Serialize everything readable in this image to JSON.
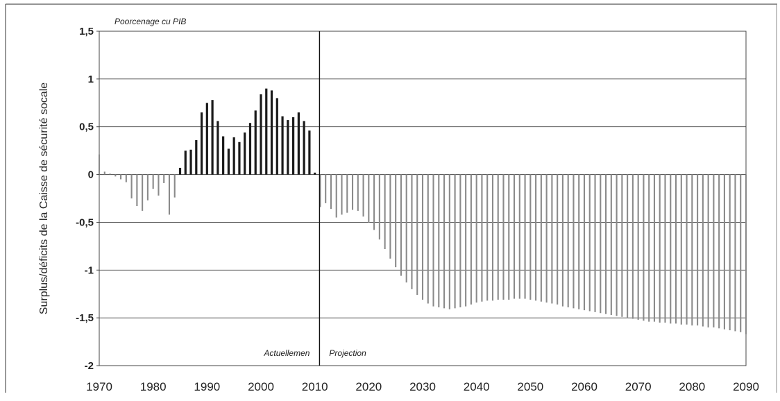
{
  "chart_data": {
    "type": "bar",
    "title": "",
    "subtitle": "Poorcenage cu PIB",
    "xlabel": "",
    "ylabel": "Surplus/déficits de la Caisse de sécurité socale",
    "ylim": [
      -2,
      1.5
    ],
    "yticks": [
      "1,5",
      "1",
      "0,5",
      "0",
      "-0,5",
      "-1",
      "-1,5",
      "-2"
    ],
    "ytick_values": [
      1.5,
      1,
      0.5,
      0,
      -0.5,
      -1,
      -1.5,
      -2
    ],
    "xticks": [
      "1970",
      "1980",
      "1990",
      "2000",
      "2010",
      "2020",
      "2030",
      "2040",
      "2050",
      "2060",
      "2070",
      "2080",
      "2090"
    ],
    "xtick_values": [
      1970,
      1980,
      1990,
      2000,
      2010,
      2020,
      2030,
      2040,
      2050,
      2060,
      2070,
      2080,
      2090
    ],
    "xlim": [
      1970,
      2090
    ],
    "grid": "horizontal",
    "divider_year": 2011,
    "annotations": {
      "left": "Actuellemen",
      "right": "Projection"
    },
    "colors": {
      "historical_positive": "#1a1a1a",
      "other_bars": "#8a8a8a",
      "grid": "#444444"
    },
    "historical_positive_range": [
      1984,
      2010
    ],
    "series": [
      {
        "x": [
          1970,
          1971,
          1972,
          1973,
          1974,
          1975,
          1976,
          1977,
          1978,
          1979,
          1980,
          1981,
          1982,
          1983,
          1984,
          1985,
          1986,
          1987,
          1988,
          1989,
          1990,
          1991,
          1992,
          1993,
          1994,
          1995,
          1996,
          1997,
          1998,
          1999,
          2000,
          2001,
          2002,
          2003,
          2004,
          2005,
          2006,
          2007,
          2008,
          2009,
          2010,
          2011,
          2012,
          2013,
          2014,
          2015,
          2016,
          2017,
          2018,
          2019,
          2020,
          2021,
          2022,
          2023,
          2024,
          2025,
          2026,
          2027,
          2028,
          2029,
          2030,
          2031,
          2032,
          2033,
          2034,
          2035,
          2036,
          2037,
          2038,
          2039,
          2040,
          2041,
          2042,
          2043,
          2044,
          2045,
          2046,
          2047,
          2048,
          2049,
          2050,
          2051,
          2052,
          2053,
          2054,
          2055,
          2056,
          2057,
          2058,
          2059,
          2060,
          2061,
          2062,
          2063,
          2064,
          2065,
          2066,
          2067,
          2068,
          2069,
          2070,
          2071,
          2072,
          2073,
          2074,
          2075,
          2076,
          2077,
          2078,
          2079,
          2080,
          2081,
          2082,
          2083,
          2084,
          2085,
          2086,
          2087,
          2088,
          2089,
          2090
        ],
        "values": [
          0.21,
          0.03,
          0.01,
          -0.02,
          -0.05,
          -0.08,
          -0.25,
          -0.33,
          -0.38,
          -0.27,
          -0.15,
          -0.22,
          -0.09,
          -0.42,
          -0.24,
          0.07,
          0.25,
          0.26,
          0.36,
          0.65,
          0.75,
          0.78,
          0.56,
          0.4,
          0.27,
          0.39,
          0.34,
          0.44,
          0.54,
          0.67,
          0.84,
          0.9,
          0.88,
          0.8,
          0.61,
          0.57,
          0.6,
          0.65,
          0.56,
          0.46,
          0.02,
          -0.34,
          -0.3,
          -0.36,
          -0.45,
          -0.42,
          -0.4,
          -0.37,
          -0.38,
          -0.44,
          -0.5,
          -0.58,
          -0.68,
          -0.78,
          -0.88,
          -0.97,
          -1.06,
          -1.13,
          -1.2,
          -1.26,
          -1.31,
          -1.35,
          -1.38,
          -1.39,
          -1.4,
          -1.41,
          -1.4,
          -1.39,
          -1.38,
          -1.36,
          -1.34,
          -1.33,
          -1.32,
          -1.32,
          -1.31,
          -1.31,
          -1.31,
          -1.3,
          -1.3,
          -1.3,
          -1.31,
          -1.32,
          -1.33,
          -1.34,
          -1.35,
          -1.36,
          -1.38,
          -1.39,
          -1.4,
          -1.41,
          -1.42,
          -1.43,
          -1.44,
          -1.45,
          -1.46,
          -1.47,
          -1.48,
          -1.49,
          -1.5,
          -1.51,
          -1.52,
          -1.53,
          -1.54,
          -1.54,
          -1.55,
          -1.55,
          -1.56,
          -1.56,
          -1.57,
          -1.57,
          -1.58,
          -1.58,
          -1.59,
          -1.6,
          -1.6,
          -1.61,
          -1.62,
          -1.63,
          -1.64,
          -1.65,
          -1.67
        ]
      }
    ]
  }
}
